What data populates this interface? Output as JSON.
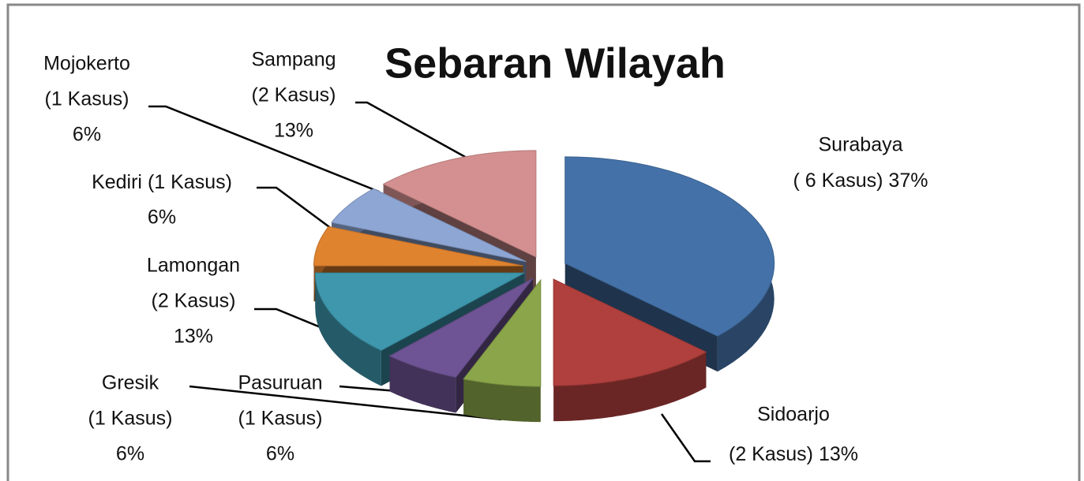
{
  "chart_data": {
    "type": "pie3d",
    "title": "Sebaran Wilayah",
    "categories": [
      "Surabaya",
      "Sidoarjo",
      "Gresik",
      "Pasuruan",
      "Lamongan",
      "Kediri",
      "Mojokerto",
      "Sampang"
    ],
    "case_labels": [
      "( 6 Kasus)",
      "(2 Kasus)",
      "(1 Kasus)",
      "(1 Kasus)",
      "(2 Kasus)",
      "(1 Kasus)",
      "(1 Kasus)",
      "(2 Kasus)"
    ],
    "values": [
      37,
      13,
      6,
      6,
      13,
      6,
      6,
      13
    ],
    "value_labels": [
      "37%",
      "13%",
      "6%",
      "6%",
      "13%",
      "6%",
      "6%",
      "13%"
    ],
    "colors": [
      "#4472a8",
      "#b0403d",
      "#8aa54a",
      "#6e5494",
      "#3e97ad",
      "#e0832f",
      "#8ea6d4",
      "#d49090"
    ]
  }
}
